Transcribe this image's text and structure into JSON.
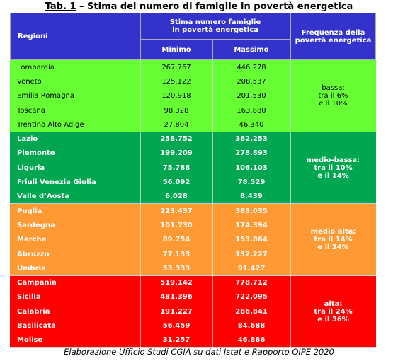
{
  "title": {
    "prefix": "Tab. 1",
    "text": " – Stima del numero di famiglie in povertà energetica"
  },
  "header": {
    "region": "Regioni",
    "estimate": [
      "Stima numero famiglie",
      "in povertà energetica"
    ],
    "min": "Minimo",
    "max": "Massimo",
    "frequency": [
      "Frequenza della",
      "povertà energetica"
    ]
  },
  "groups": [
    {
      "frequency": [
        "bassa:",
        "tra il 6%",
        "e il 10%"
      ],
      "rows": [
        [
          "Lombardia",
          "267.767",
          "446.278"
        ],
        [
          "Veneto",
          "125.122",
          "208.537"
        ],
        [
          "Emilia Romagna",
          "120.918",
          "201.530"
        ],
        [
          "Toscana",
          "98.328",
          "163.880"
        ],
        [
          "Trentino Alto Adige",
          "27.804",
          "46.340"
        ]
      ]
    },
    {
      "frequency": [
        "medio-bassa:",
        "tra il 10%",
        "e il 14%"
      ],
      "rows": [
        [
          "Lazio",
          "258.752",
          "362.253"
        ],
        [
          "Piemonte",
          "199.209",
          "278.893"
        ],
        [
          "Liguria",
          "75.788",
          "106.103"
        ],
        [
          "Friuli Venezia Giulia",
          "56.092",
          "78.529"
        ],
        [
          "Valle d’Aosta",
          "6.028",
          "8.439"
        ]
      ]
    },
    {
      "frequency": [
        "medio alta:",
        "tra il 14%",
        "e il 24%"
      ],
      "rows": [
        [
          "Puglia",
          "223.437",
          "383.035"
        ],
        [
          "Sardegna",
          "101.730",
          "174.394"
        ],
        [
          "Marche",
          "89.754",
          "153.864"
        ],
        [
          "Abruzzo",
          "77.133",
          "132.227"
        ],
        [
          "Umbria",
          "53.333",
          "91.427"
        ]
      ]
    },
    {
      "frequency": [
        "alta:",
        "tra il 24%",
        "e il 36%"
      ],
      "rows": [
        [
          "Campania",
          "519.142",
          "778.712"
        ],
        [
          "Sicilia",
          "481.396",
          "722.095"
        ],
        [
          "Calabria",
          "191.227",
          "286.841"
        ],
        [
          "Basilicata",
          "56.459",
          "84.688"
        ],
        [
          "Molise",
          "31.257",
          "46.886"
        ]
      ]
    }
  ],
  "footer": "Elaborazione Ufficio Studi CGIA su dati Istat e Rapporto OIPE 2020"
}
